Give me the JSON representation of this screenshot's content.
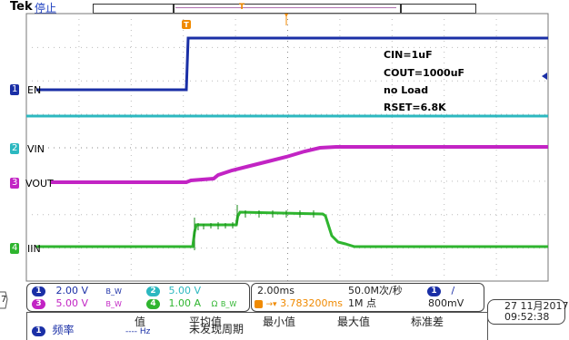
{
  "header": {
    "brand": "Tek",
    "status": "停止",
    "trigger_marker": "T"
  },
  "channels": {
    "ch1": {
      "num": "1",
      "name": "EN",
      "color": "#1a2fa6"
    },
    "ch2": {
      "num": "2",
      "name": "VIN",
      "color": "#2cb8c0"
    },
    "ch3": {
      "num": "3",
      "name": "VOUT",
      "color": "#c224c4"
    },
    "ch4": {
      "num": "4",
      "name": "IIN",
      "color": "#2fb52f"
    }
  },
  "annotations": {
    "line1": "CIN=1uF",
    "line2": "COUT=1000uF",
    "line3": "no Load",
    "line4": "RSET=6.8K"
  },
  "edge_marker": "7",
  "scale": {
    "ch1_scale": "2.00 V",
    "ch2_scale": "5.00 V",
    "ch3_scale": "5.00 V",
    "ch4_scale": "1.00 A",
    "bw": "B_W",
    "omega": "Ω"
  },
  "timebase": {
    "time_div": "2.00ms",
    "sample_rate": "50.0M次/秒",
    "trig_source": "1",
    "trig_slope": "/",
    "trig_pos": "3.783200ms",
    "record_length": "1M 点",
    "trig_level": "800mV"
  },
  "datetime": {
    "date": "27 11月2017",
    "time": "09:52:38"
  },
  "measurements": {
    "headers": [
      "值",
      "平均值",
      "最小值",
      "最大值",
      "标准差"
    ],
    "row1": {
      "num": "1",
      "label": "频率",
      "value": "---- Hz",
      "mean": "未发现周期"
    }
  }
}
